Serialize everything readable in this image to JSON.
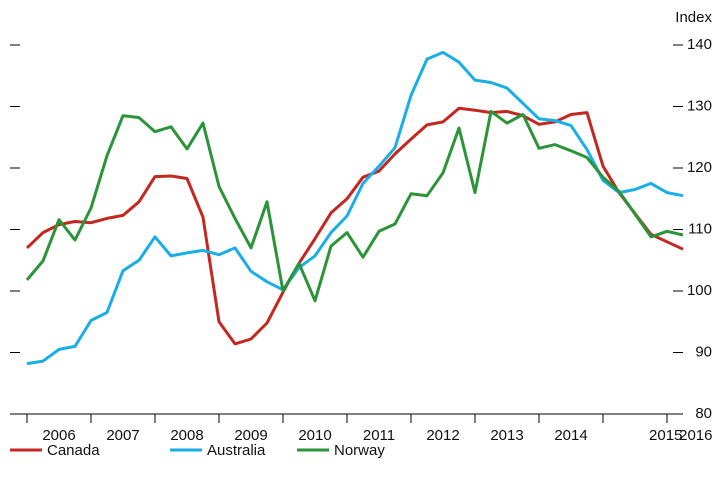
{
  "chart_data": {
    "type": "line",
    "y_label": "Index",
    "x": [
      2006,
      2006.25,
      2006.5,
      2006.75,
      2007,
      2007.25,
      2007.5,
      2007.75,
      2008,
      2008.25,
      2008.5,
      2008.75,
      2009,
      2009.25,
      2009.5,
      2009.75,
      2010,
      2010.25,
      2010.5,
      2010.75,
      2011,
      2011.25,
      2011.5,
      2011.75,
      2012,
      2012.25,
      2012.5,
      2012.75,
      2013,
      2013.25,
      2013.5,
      2013.75,
      2014,
      2014.25,
      2014.5,
      2014.75,
      2015,
      2015.25,
      2015.5,
      2015.75,
      2016,
      2016.25
    ],
    "series": [
      {
        "name": "Canada",
        "color": "#c4271f",
        "values": [
          107,
          109.5,
          110.8,
          111.3,
          111.1,
          111.8,
          112.3,
          114.5,
          118.6,
          118.7,
          118.3,
          112,
          95,
          91.4,
          92.2,
          94.8,
          99.8,
          104.5,
          108.5,
          112.7,
          115,
          118.5,
          119.5,
          122.3,
          124.7,
          127,
          127.5,
          129.7,
          129.4,
          129,
          129.2,
          128.5,
          127.1,
          127.5,
          128.7,
          129,
          120.3,
          116,
          112.6,
          109.2,
          108,
          106.8
        ]
      },
      {
        "name": "Australia",
        "color": "#19aee6",
        "values": [
          88.2,
          88.6,
          90.5,
          91,
          95.2,
          96.5,
          103.3,
          105,
          108.8,
          105.7,
          106.2,
          106.6,
          105.9,
          107,
          103.2,
          101.5,
          100.2,
          103.8,
          105.7,
          109.5,
          112.2,
          117.5,
          120.3,
          123.3,
          131.8,
          137.7,
          138.8,
          137.2,
          134.3,
          133.9,
          133,
          130.5,
          128,
          127.7,
          126.9,
          123,
          118,
          116,
          116.5,
          117.5,
          116,
          115.5
        ]
      },
      {
        "name": "Norway",
        "color": "#2b9438",
        "values": [
          101.8,
          104.9,
          111.6,
          108.3,
          113.5,
          122,
          128.5,
          128.2,
          125.9,
          126.7,
          123.1,
          127.3,
          117,
          111.8,
          107,
          114.5,
          100,
          104.5,
          98.4,
          107.3,
          109.5,
          105.5,
          109.7,
          110.9,
          115.8,
          115.5,
          119.2,
          126.5,
          116,
          129.2,
          127.3,
          128.7,
          123.2,
          123.8,
          122.8,
          121.7,
          118.5,
          116.2,
          112.5,
          108.8,
          109.7,
          109.1
        ]
      }
    ],
    "xlim": [
      2005.75,
      2016.25
    ],
    "x_tick_marks": [
      2006,
      2007,
      2008,
      2009,
      2010,
      2011,
      2012,
      2013,
      2014,
      2015,
      2016
    ],
    "xticks": [
      {
        "value": 2006.5,
        "label": "2006"
      },
      {
        "value": 2007.5,
        "label": "2007"
      },
      {
        "value": 2008.5,
        "label": "2008"
      },
      {
        "value": 2009.5,
        "label": "2009"
      },
      {
        "value": 2010.5,
        "label": "2010"
      },
      {
        "value": 2011.5,
        "label": "2011"
      },
      {
        "value": 2012.5,
        "label": "2012"
      },
      {
        "value": 2013.5,
        "label": "2013"
      },
      {
        "value": 2014.5,
        "label": "2014"
      },
      {
        "value": 2015.98,
        "label": "2015"
      },
      {
        "value": 2016.45,
        "label": "2016"
      }
    ],
    "ylim": [
      80,
      140
    ],
    "yticks": [
      80,
      90,
      100,
      110,
      120,
      130,
      140
    ],
    "legend": "bottom"
  }
}
